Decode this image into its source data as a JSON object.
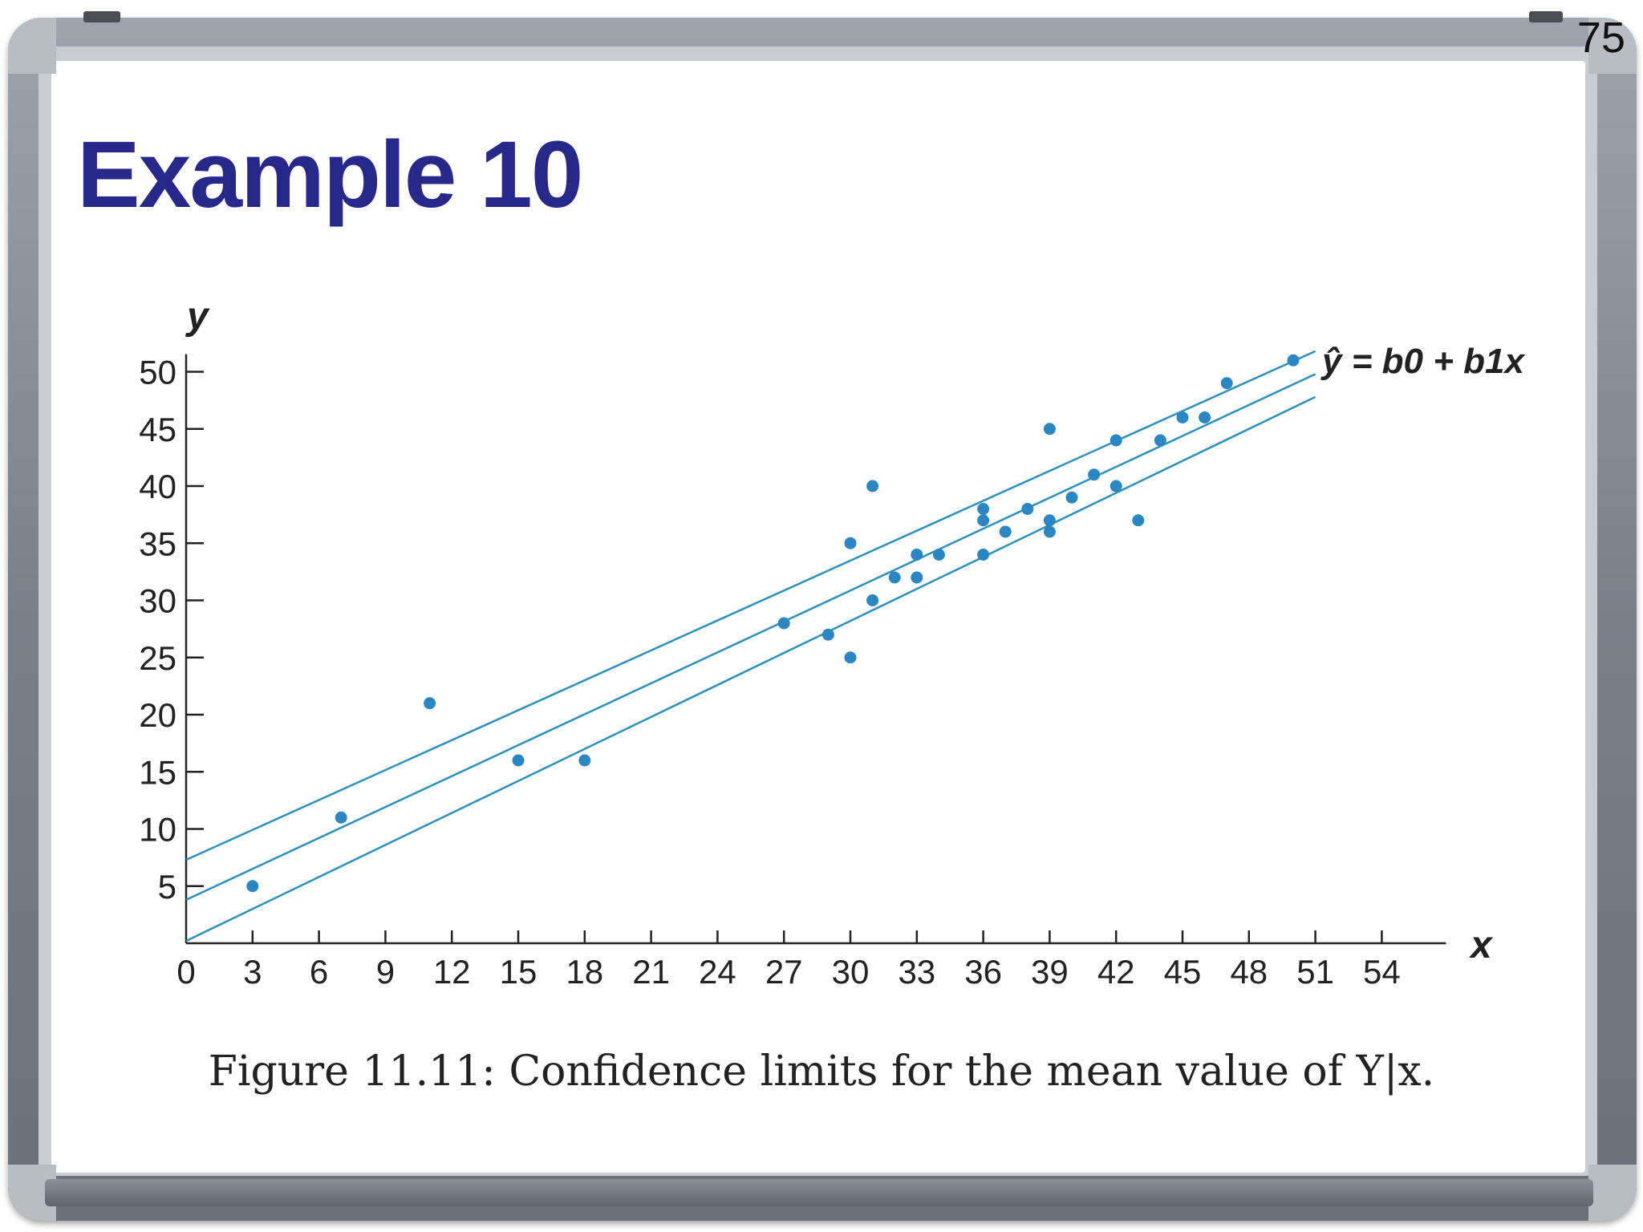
{
  "slide": {
    "number": "75",
    "title": "Example 10",
    "caption": "Figure 11.11: Confidence limits for the mean value of Y|x."
  },
  "colors": {
    "title": "#27288a",
    "series": "#2b86c2",
    "lines": "#2e8fb8",
    "axis": "#222222"
  },
  "chart_data": {
    "type": "scatter",
    "xlabel": "x",
    "ylabel": "y",
    "xlim": [
      0,
      54
    ],
    "ylim": [
      0,
      50
    ],
    "xticks": [
      0,
      3,
      6,
      9,
      12,
      15,
      18,
      21,
      24,
      27,
      30,
      33,
      36,
      39,
      42,
      45,
      48,
      51,
      54
    ],
    "yticks": [
      5,
      10,
      15,
      20,
      25,
      30,
      35,
      40,
      45,
      50
    ],
    "regression_label": "ŷ = b0 + b1x",
    "points": [
      {
        "x": 3,
        "y": 5
      },
      {
        "x": 7,
        "y": 11
      },
      {
        "x": 11,
        "y": 21
      },
      {
        "x": 15,
        "y": 16
      },
      {
        "x": 18,
        "y": 16
      },
      {
        "x": 27,
        "y": 28
      },
      {
        "x": 29,
        "y": 27
      },
      {
        "x": 30,
        "y": 25
      },
      {
        "x": 30,
        "y": 35
      },
      {
        "x": 31,
        "y": 40
      },
      {
        "x": 31,
        "y": 30
      },
      {
        "x": 32,
        "y": 32
      },
      {
        "x": 33,
        "y": 34
      },
      {
        "x": 33,
        "y": 32
      },
      {
        "x": 34,
        "y": 34
      },
      {
        "x": 36,
        "y": 38
      },
      {
        "x": 36,
        "y": 37
      },
      {
        "x": 36,
        "y": 34
      },
      {
        "x": 37,
        "y": 36
      },
      {
        "x": 38,
        "y": 38
      },
      {
        "x": 39,
        "y": 45
      },
      {
        "x": 39,
        "y": 37
      },
      {
        "x": 39,
        "y": 36
      },
      {
        "x": 40,
        "y": 39
      },
      {
        "x": 41,
        "y": 41
      },
      {
        "x": 42,
        "y": 44
      },
      {
        "x": 42,
        "y": 40
      },
      {
        "x": 43,
        "y": 37
      },
      {
        "x": 44,
        "y": 44
      },
      {
        "x": 45,
        "y": 46
      },
      {
        "x": 46,
        "y": 46
      },
      {
        "x": 47,
        "y": 49
      },
      {
        "x": 50,
        "y": 51
      }
    ],
    "lines": [
      {
        "name": "upper confidence limit",
        "x": [
          0,
          51
        ],
        "y": [
          7.3,
          51.8
        ]
      },
      {
        "name": "fitted line",
        "x": [
          0,
          51
        ],
        "y": [
          3.8,
          49.8
        ]
      },
      {
        "name": "lower confidence limit",
        "x": [
          0,
          51
        ],
        "y": [
          0.2,
          47.8
        ]
      }
    ]
  }
}
